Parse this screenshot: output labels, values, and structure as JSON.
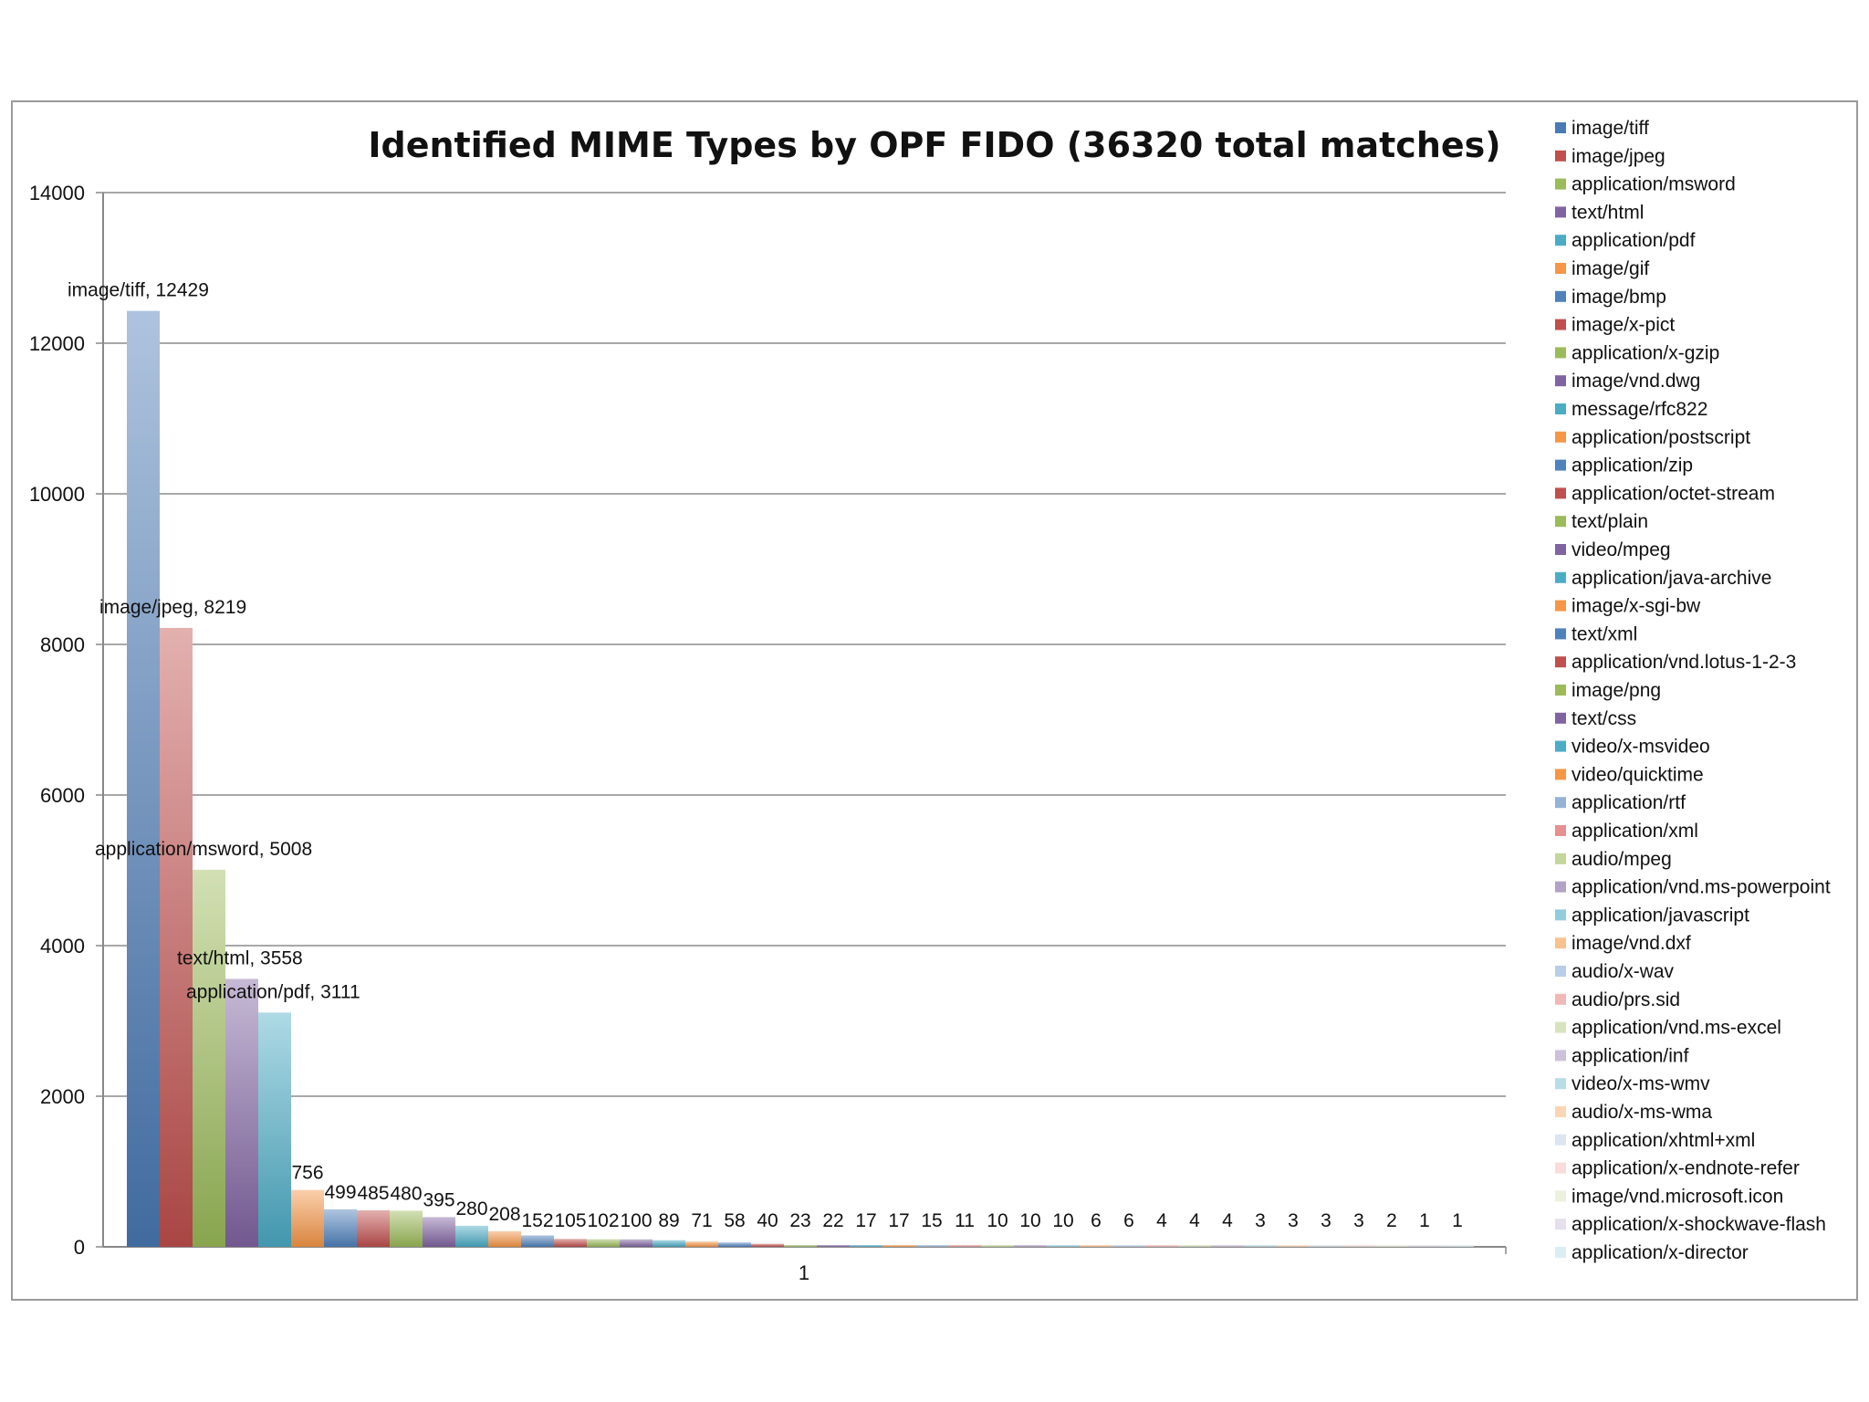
{
  "chart_data": {
    "type": "bar",
    "title": "Identified MIME Types by OPF FIDO (36320 total matches)",
    "categories": [
      "1"
    ],
    "ylim": [
      0,
      14000
    ],
    "yticks": [
      0,
      2000,
      4000,
      6000,
      8000,
      10000,
      12000,
      14000
    ],
    "grid": true,
    "legend_position": "right",
    "series": [
      {
        "name": "image/tiff",
        "value": 12429,
        "label": "image/tiff, 12429",
        "color": "#4a7ab5"
      },
      {
        "name": "image/jpeg",
        "value": 8219,
        "label": "image/jpeg, 8219",
        "color": "#c0504d"
      },
      {
        "name": "application/msword",
        "value": 5008,
        "label": "application/msword, 5008",
        "color": "#9bbb59"
      },
      {
        "name": "text/html",
        "value": 3558,
        "label": "text/html, 3558",
        "color": "#8064a2"
      },
      {
        "name": "application/pdf",
        "value": 3111,
        "label": "application/pdf, 3111",
        "color": "#4bacc6"
      },
      {
        "name": "image/gif",
        "value": 756,
        "label": "756",
        "color": "#f79646"
      },
      {
        "name": "image/bmp",
        "value": 499,
        "label": "499",
        "color": "#4f81bd"
      },
      {
        "name": "image/x-pict",
        "value": 485,
        "label": "485",
        "color": "#c0504d"
      },
      {
        "name": "application/x-gzip",
        "value": 480,
        "label": "480",
        "color": "#9bbb59"
      },
      {
        "name": "image/vnd.dwg",
        "value": 395,
        "label": "395",
        "color": "#8064a2"
      },
      {
        "name": "message/rfc822",
        "value": 280,
        "label": "280",
        "color": "#4bacc6"
      },
      {
        "name": "application/postscript",
        "value": 208,
        "label": "208",
        "color": "#f79646"
      },
      {
        "name": "application/zip",
        "value": 152,
        "label": "152",
        "color": "#4f81bd"
      },
      {
        "name": "application/octet-stream",
        "value": 105,
        "label": "105",
        "color": "#c0504d"
      },
      {
        "name": "text/plain",
        "value": 102,
        "label": "102",
        "color": "#9bbb59"
      },
      {
        "name": "video/mpeg",
        "value": 100,
        "label": "100",
        "color": "#8064a2"
      },
      {
        "name": "application/java-archive",
        "value": 89,
        "label": "89",
        "color": "#4bacc6"
      },
      {
        "name": "image/x-sgi-bw",
        "value": 71,
        "label": "71",
        "color": "#f79646"
      },
      {
        "name": "text/xml",
        "value": 58,
        "label": "58",
        "color": "#4f81bd"
      },
      {
        "name": "application/vnd.lotus-1-2-3",
        "value": 40,
        "label": "40",
        "color": "#c0504d"
      },
      {
        "name": "image/png",
        "value": 23,
        "label": "23",
        "color": "#9bbb59"
      },
      {
        "name": "text/css",
        "value": 22,
        "label": "22",
        "color": "#8064a2"
      },
      {
        "name": "video/x-msvideo",
        "value": 17,
        "label": "17",
        "color": "#4bacc6"
      },
      {
        "name": "video/quicktime",
        "value": 17,
        "label": "17",
        "color": "#f79646"
      },
      {
        "name": "application/rtf",
        "value": 15,
        "label": "15",
        "color": "#95b3d7"
      },
      {
        "name": "application/xml",
        "value": 11,
        "label": "11",
        "color": "#e6918f"
      },
      {
        "name": "audio/mpeg",
        "value": 10,
        "label": "10",
        "color": "#c3d69b"
      },
      {
        "name": "application/vnd.ms-powerpoint",
        "value": 10,
        "label": "10",
        "color": "#b3a2c7"
      },
      {
        "name": "application/javascript",
        "value": 10,
        "label": "10",
        "color": "#93cddd"
      },
      {
        "name": "image/vnd.dxf",
        "value": 6,
        "label": "6",
        "color": "#fac08f"
      },
      {
        "name": "audio/x-wav",
        "value": 6,
        "label": "6",
        "color": "#b9cde5"
      },
      {
        "name": "audio/prs.sid",
        "value": 4,
        "label": "4",
        "color": "#f2b8b6"
      },
      {
        "name": "application/vnd.ms-excel",
        "value": 4,
        "label": "4",
        "color": "#d7e4bd"
      },
      {
        "name": "application/inf",
        "value": 4,
        "label": "4",
        "color": "#ccc1da"
      },
      {
        "name": "video/x-ms-wmv",
        "value": 3,
        "label": "3",
        "color": "#b7dee8"
      },
      {
        "name": "audio/x-ms-wma",
        "value": 3,
        "label": "3",
        "color": "#fcd5b5"
      },
      {
        "name": "application/xhtml+xml",
        "value": 3,
        "label": "3",
        "color": "#dce6f2"
      },
      {
        "name": "application/x-endnote-refer",
        "value": 3,
        "label": "3",
        "color": "#f9dcdb"
      },
      {
        "name": "image/vnd.microsoft.icon",
        "value": 2,
        "label": "2",
        "color": "#ebf1de"
      },
      {
        "name": "application/x-shockwave-flash",
        "value": 1,
        "label": "1",
        "color": "#e6e0ec"
      },
      {
        "name": "application/x-director",
        "value": 1,
        "label": "1",
        "color": "#dbeef4"
      }
    ]
  }
}
